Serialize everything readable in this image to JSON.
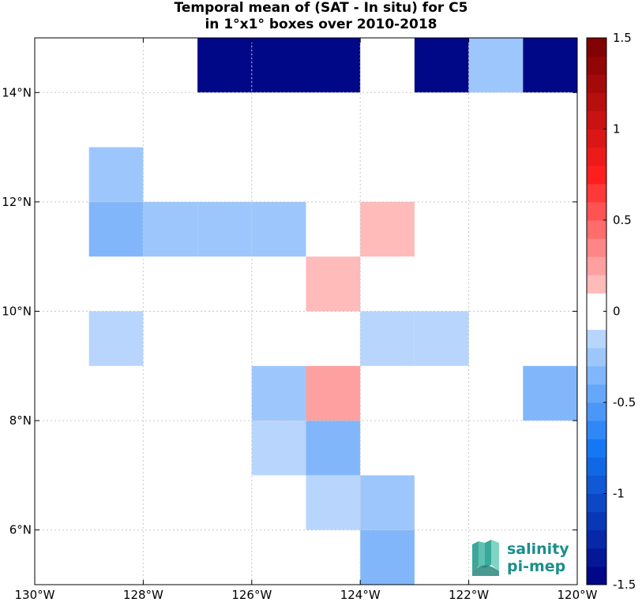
{
  "chart_data": {
    "type": "heatmap",
    "title": "Temporal mean of (SAT - In situ) for C5",
    "subtitle": "in 1°x1° boxes over 2010-2018",
    "xlim": [
      -130,
      -120
    ],
    "ylim": [
      5,
      15
    ],
    "x_ticks": [
      {
        "value": -130,
        "label": "130°W"
      },
      {
        "value": -128,
        "label": "128°W"
      },
      {
        "value": -126,
        "label": "126°W"
      },
      {
        "value": -124,
        "label": "124°W"
      },
      {
        "value": -122,
        "label": "122°W"
      },
      {
        "value": -120,
        "label": "120°W"
      }
    ],
    "y_ticks": [
      {
        "value": 6,
        "label": "6°N"
      },
      {
        "value": 8,
        "label": "8°N"
      },
      {
        "value": 10,
        "label": "10°N"
      },
      {
        "value": 12,
        "label": "12°N"
      },
      {
        "value": 14,
        "label": "14°N"
      }
    ],
    "grid": true,
    "cells": [
      {
        "lon": -127,
        "lat": 14,
        "value": -1.5
      },
      {
        "lon": -126,
        "lat": 14,
        "value": -1.5
      },
      {
        "lon": -125,
        "lat": 14,
        "value": -1.5
      },
      {
        "lon": -123,
        "lat": 14,
        "value": -1.5
      },
      {
        "lon": -122,
        "lat": 14,
        "value": -0.25
      },
      {
        "lon": -121,
        "lat": 14,
        "value": -1.5
      },
      {
        "lon": -129,
        "lat": 12,
        "value": -0.25
      },
      {
        "lon": -129,
        "lat": 11,
        "value": -0.35
      },
      {
        "lon": -128,
        "lat": 11,
        "value": -0.25
      },
      {
        "lon": -127,
        "lat": 11,
        "value": -0.25
      },
      {
        "lon": -126,
        "lat": 11,
        "value": -0.25
      },
      {
        "lon": -124,
        "lat": 11,
        "value": 0.1
      },
      {
        "lon": -125,
        "lat": 10,
        "value": 0.1
      },
      {
        "lon": -129,
        "lat": 9,
        "value": -0.1
      },
      {
        "lon": -124,
        "lat": 9,
        "value": -0.1
      },
      {
        "lon": -123,
        "lat": 9,
        "value": -0.1
      },
      {
        "lon": -126,
        "lat": 8,
        "value": -0.25
      },
      {
        "lon": -125,
        "lat": 8,
        "value": 0.25
      },
      {
        "lon": -121,
        "lat": 8,
        "value": -0.35
      },
      {
        "lon": -126,
        "lat": 7,
        "value": -0.1
      },
      {
        "lon": -125,
        "lat": 7,
        "value": -0.35
      },
      {
        "lon": -125,
        "lat": 6,
        "value": -0.1
      },
      {
        "lon": -124,
        "lat": 6,
        "value": -0.25
      },
      {
        "lon": -124,
        "lat": 5,
        "value": -0.35
      }
    ],
    "colorbar": {
      "min": -1.5,
      "max": 1.5,
      "levels": 30,
      "ticks": [
        {
          "value": 1.5,
          "label": "1.5"
        },
        {
          "value": 1,
          "label": "1"
        },
        {
          "value": 0.5,
          "label": "0.5"
        },
        {
          "value": 0,
          "label": "0"
        },
        {
          "value": -0.5,
          "label": "-0.5"
        },
        {
          "value": -1,
          "label": "-1"
        },
        {
          "value": -1.5,
          "label": "-1.5"
        }
      ]
    }
  },
  "logo": {
    "line1": "salinity",
    "line2": "pi-mep"
  }
}
